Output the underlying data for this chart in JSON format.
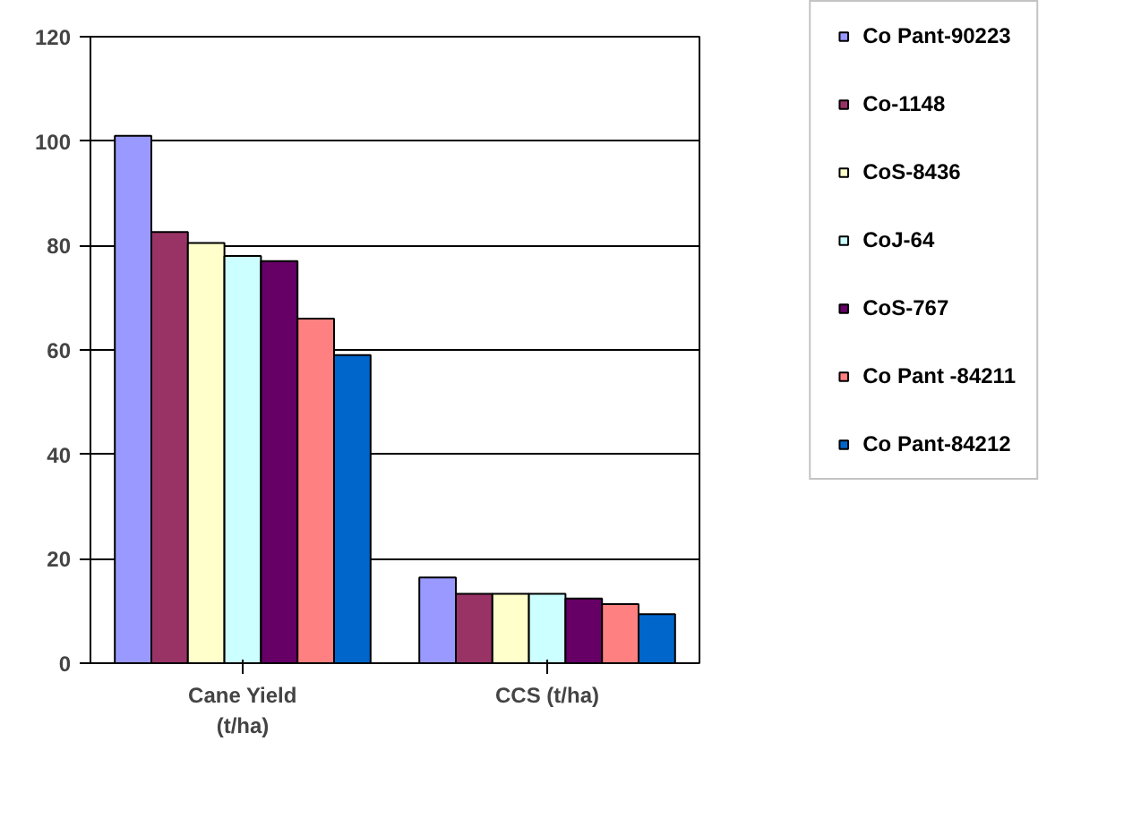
{
  "chart_data": {
    "type": "bar",
    "categories": [
      "Cane Yield (t/ha)",
      "CCS (t/ha)"
    ],
    "series": [
      {
        "name": "Co Pant-90223",
        "color": "#9999ff",
        "values": [
          101,
          16.4
        ]
      },
      {
        "name": "Co-1148",
        "color": "#993366",
        "values": [
          82.6,
          13.3
        ]
      },
      {
        "name": "CoS-8436",
        "color": "#ffffcc",
        "values": [
          80.5,
          13.3
        ]
      },
      {
        "name": "CoJ-64",
        "color": "#ccffff",
        "values": [
          78,
          13.3
        ]
      },
      {
        "name": "CoS-767",
        "color": "#660066",
        "values": [
          77,
          12.4
        ]
      },
      {
        "name": "Co Pant -84211",
        "color": "#ff8080",
        "values": [
          66,
          11.3
        ]
      },
      {
        "name": "Co Pant-84212",
        "color": "#0066cc",
        "values": [
          59,
          9.4
        ]
      }
    ],
    "ylim": [
      0,
      120
    ],
    "yticks": [
      0,
      20,
      40,
      60,
      80,
      100,
      120
    ],
    "grid": "y",
    "legend": "right"
  }
}
